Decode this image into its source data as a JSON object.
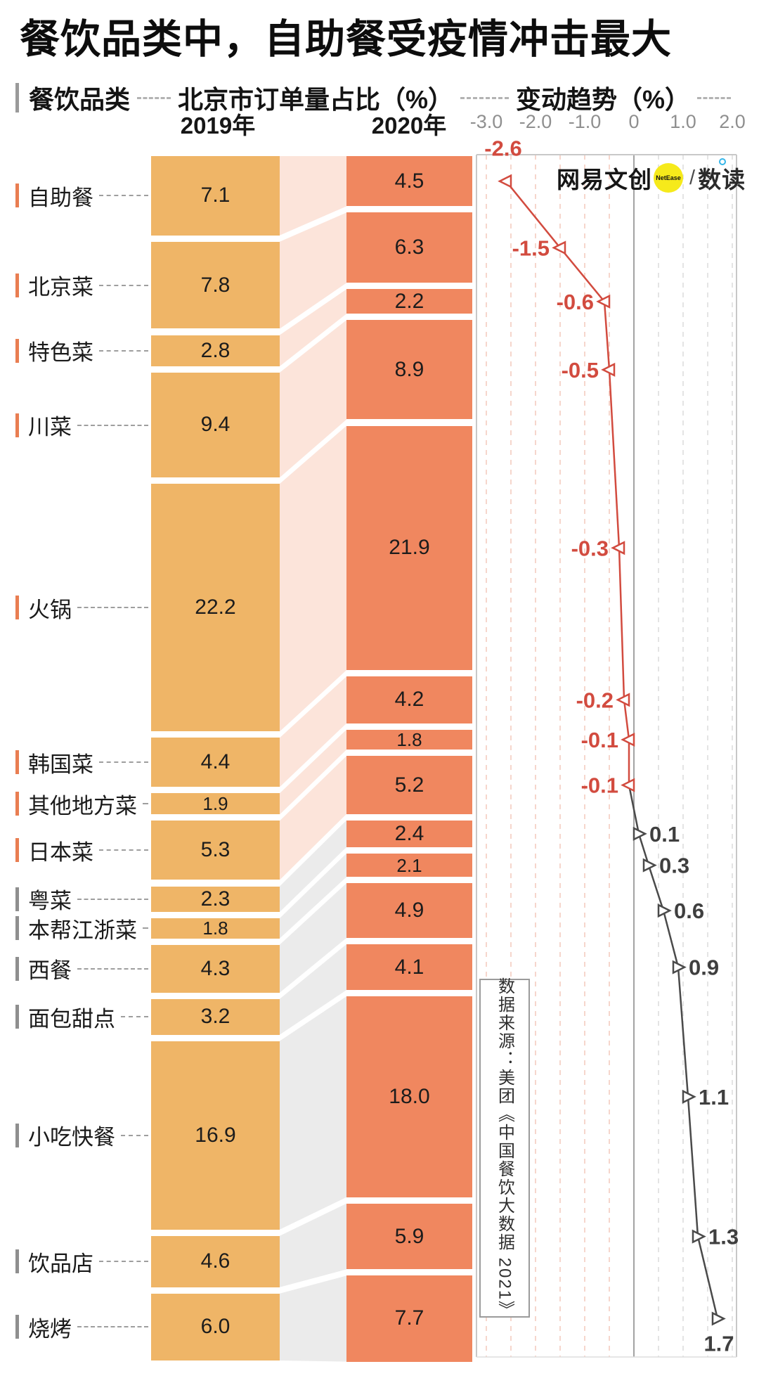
{
  "title": "餐饮品类中，自助餐受疫情冲击最大",
  "header": {
    "col_category": "餐饮品类",
    "col_share": "北京市订单量占比（%）",
    "col_trend": "变动趋势（%）"
  },
  "columns": {
    "y2019": "2019年",
    "y2020": "2020年"
  },
  "axis": {
    "ticks": [
      "-3.0",
      "-2.0",
      "-1.0",
      "0",
      "1.0",
      "2.0"
    ],
    "tick_values": [
      -3,
      -2,
      -1,
      0,
      1,
      2
    ]
  },
  "logo": {
    "brand": "网易文创",
    "badge": "NetEase",
    "sep": "/",
    "product": "数读",
    "badge_color": "#f6ea1b"
  },
  "source": "数据来源：美团《中国餐饮大数据 2021》",
  "chart_data": {
    "type": "bar",
    "subtype": "paired-bar-columns-with-slope-connectors-and-change-line",
    "categories": [
      "自助餐",
      "北京菜",
      "特色菜",
      "川菜",
      "火锅",
      "韩国菜",
      "其他地方菜",
      "日本菜",
      "粤菜",
      "本帮江浙菜",
      "西餐",
      "面包甜点",
      "小吃快餐",
      "饮品店",
      "烧烤"
    ],
    "series": [
      {
        "name": "2019年",
        "values": [
          7.1,
          7.8,
          2.8,
          9.4,
          22.2,
          4.4,
          1.9,
          5.3,
          2.3,
          1.8,
          4.3,
          3.2,
          16.9,
          4.6,
          6.0
        ]
      },
      {
        "name": "2020年",
        "values": [
          4.5,
          6.3,
          2.2,
          8.9,
          21.9,
          4.2,
          1.8,
          5.2,
          2.4,
          2.1,
          4.9,
          4.1,
          18.0,
          5.9,
          7.7
        ]
      }
    ],
    "change": [
      -2.6,
      -1.5,
      -0.6,
      -0.5,
      -0.3,
      -0.2,
      -0.1,
      -0.1,
      0.1,
      0.3,
      0.6,
      0.9,
      1.1,
      1.3,
      1.7
    ],
    "trend_xlim": [
      -3.0,
      2.0
    ],
    "gridline_step": 0.5,
    "grid_dashed": true,
    "colors": {
      "bar2019": "#efb567",
      "bar2020": "#f0875f",
      "band_negative": "#fce4da",
      "band_positive": "#ebebeb",
      "negative": "#d24b3f",
      "positive": "#4a4a4a",
      "tick_negative": "#e97e52",
      "tick_positive": "#8f8f8f",
      "grid_negative": "#f4c9bc",
      "grid_positive": "#dcdcdc",
      "zero_axis": "#a3a3a3",
      "plot_border": "#c8c8c8"
    }
  }
}
